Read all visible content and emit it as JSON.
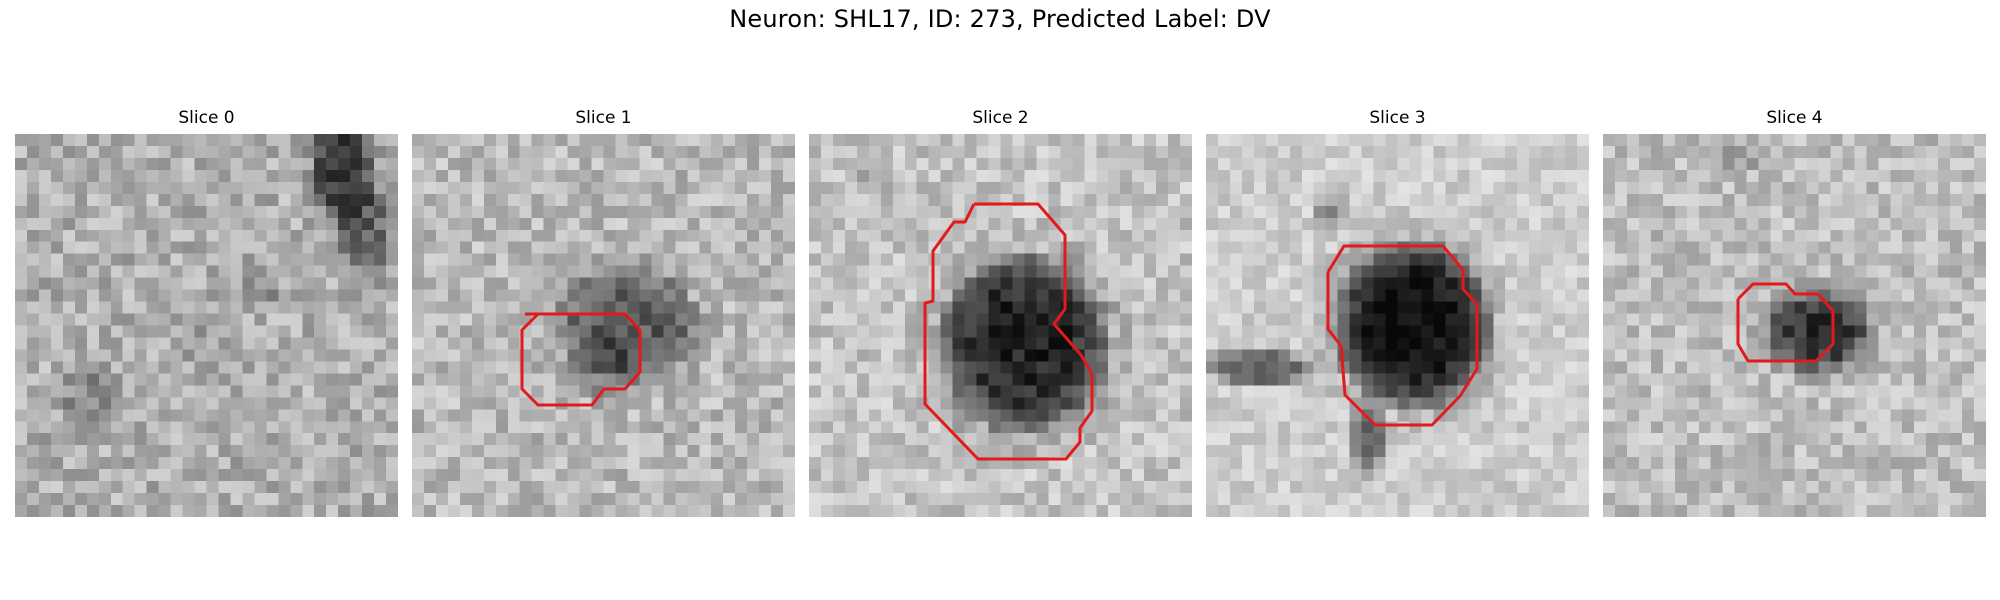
{
  "figure": {
    "title": "Neuron: SHL17, ID: 273, Predicted Label: DV",
    "outline_color": "#e31a1c"
  },
  "panels": [
    {
      "title": "Slice 0"
    },
    {
      "title": "Slice 1"
    },
    {
      "title": "Slice 2"
    },
    {
      "title": "Slice 3"
    },
    {
      "title": "Slice 4"
    }
  ]
}
